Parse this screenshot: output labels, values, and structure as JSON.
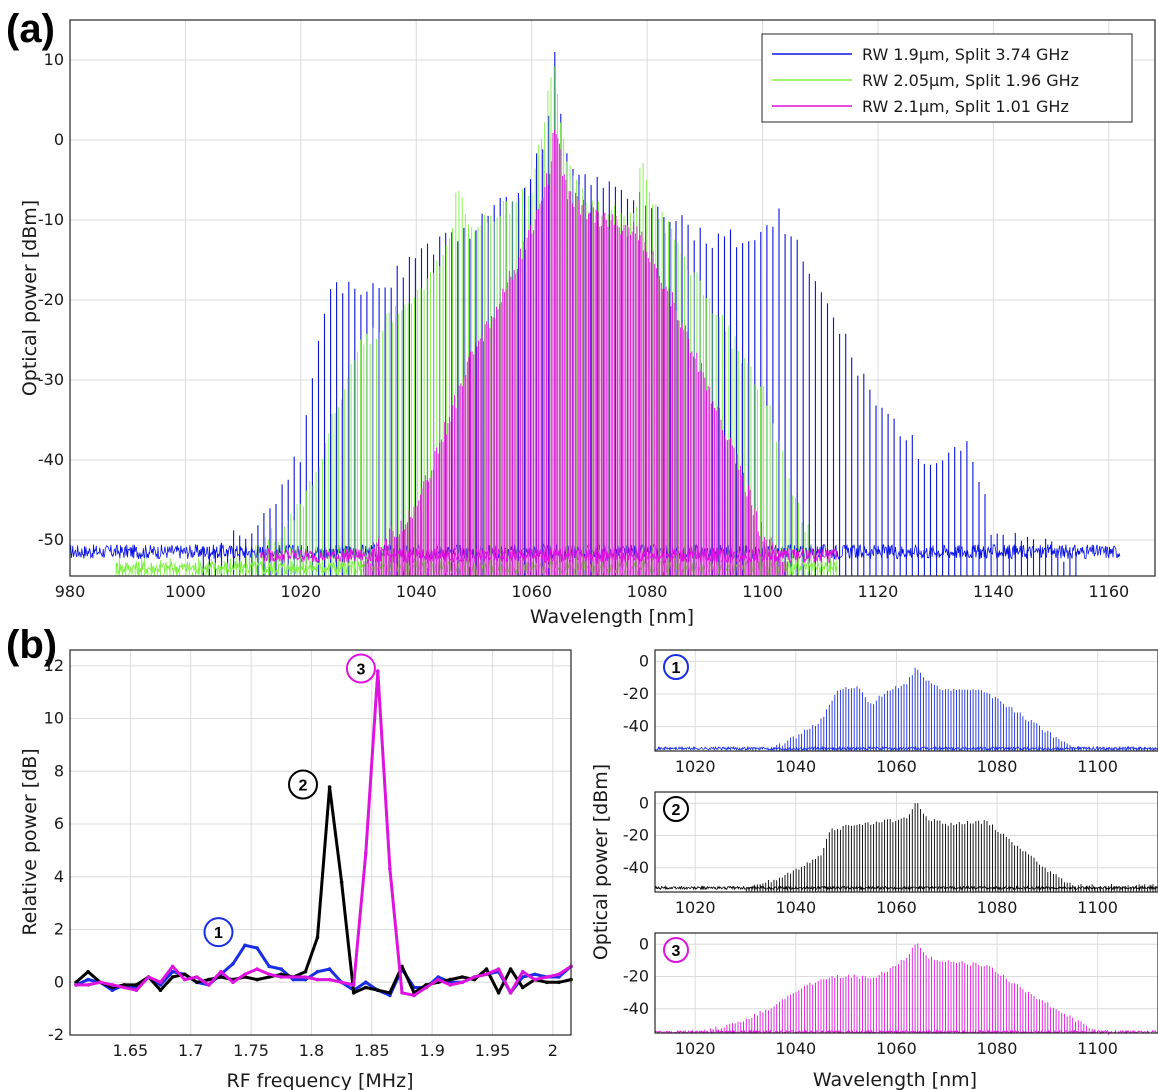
{
  "panel_labels": {
    "a": "(a)",
    "b": "(b)"
  },
  "chart_data": [
    {
      "id": "a",
      "type": "line",
      "xlabel": "Wavelength [nm]",
      "ylabel": "Optical power [dBm]",
      "xlim": [
        980,
        1168
      ],
      "ylim": [
        -54.5,
        15
      ],
      "xticks": [
        980,
        1000,
        1020,
        1040,
        1060,
        1080,
        1100,
        1120,
        1140,
        1160
      ],
      "yticks": [
        -50,
        -40,
        -30,
        -20,
        -10,
        0,
        10
      ],
      "grid": true,
      "legend": "top-right",
      "series": [
        {
          "name": "RW 1.9µm, Split 3.74 GHz",
          "color": "#0a12e0",
          "range": [
            980,
            1162
          ],
          "noise_floor": -52,
          "envelope": [
            [
              1000,
              -52
            ],
            [
              1010,
              -48
            ],
            [
              1015,
              -44
            ],
            [
              1020,
              -38
            ],
            [
              1022,
              -28
            ],
            [
              1025,
              -18
            ],
            [
              1030,
              -17
            ],
            [
              1035,
              -17
            ],
            [
              1040,
              -13
            ],
            [
              1050,
              -10
            ],
            [
              1058,
              -5
            ],
            [
              1062,
              0
            ],
            [
              1064,
              11
            ],
            [
              1066,
              -1
            ],
            [
              1070,
              -4
            ],
            [
              1080,
              -6
            ],
            [
              1090,
              -11
            ],
            [
              1100,
              -11
            ],
            [
              1103,
              -8
            ],
            [
              1110,
              -18
            ],
            [
              1115,
              -25
            ],
            [
              1120,
              -32
            ],
            [
              1130,
              -40
            ],
            [
              1136,
              -37
            ],
            [
              1140,
              -48
            ],
            [
              1150,
              -50
            ],
            [
              1160,
              -52
            ]
          ]
        },
        {
          "name": "RW 2.05µm, Split 1.96 GHz",
          "color": "#7ef042",
          "range": [
            988,
            1113
          ],
          "noise_floor": -54,
          "envelope": [
            [
              1010,
              -52
            ],
            [
              1020,
              -45
            ],
            [
              1025,
              -35
            ],
            [
              1030,
              -25
            ],
            [
              1040,
              -18
            ],
            [
              1046,
              -12
            ],
            [
              1047,
              -4
            ],
            [
              1050,
              -10
            ],
            [
              1060,
              -5
            ],
            [
              1064,
              11
            ],
            [
              1066,
              -2
            ],
            [
              1070,
              -7
            ],
            [
              1078,
              -9
            ],
            [
              1079,
              -1
            ],
            [
              1082,
              -8
            ],
            [
              1090,
              -18
            ],
            [
              1100,
              -30
            ],
            [
              1105,
              -42
            ],
            [
              1110,
              -52
            ]
          ]
        },
        {
          "name": "RW 2.1µm, Split 1.01 GHz",
          "color": "#e010e0",
          "range": [
            1013,
            1113
          ],
          "noise_floor": -52.5,
          "envelope": [
            [
              1030,
              -52
            ],
            [
              1040,
              -45
            ],
            [
              1045,
              -35
            ],
            [
              1050,
              -25
            ],
            [
              1055,
              -18
            ],
            [
              1060,
              -10
            ],
            [
              1063,
              -3
            ],
            [
              1064,
              4
            ],
            [
              1066,
              -5
            ],
            [
              1070,
              -8
            ],
            [
              1078,
              -10
            ],
            [
              1082,
              -15
            ],
            [
              1088,
              -25
            ],
            [
              1095,
              -38
            ],
            [
              1100,
              -48
            ],
            [
              1105,
              -52
            ]
          ]
        }
      ]
    },
    {
      "id": "b-left",
      "type": "line",
      "xlabel": "RF frequency [MHz]",
      "ylabel": "Relative power [dB]",
      "xlim": [
        1.6,
        2.015
      ],
      "ylim": [
        -2,
        12.6
      ],
      "xticks": [
        1.65,
        1.7,
        1.75,
        1.8,
        1.85,
        1.9,
        1.95,
        2
      ],
      "yticks": [
        -2,
        0,
        2,
        4,
        6,
        8,
        10,
        12
      ],
      "grid": true,
      "x": [
        1.605,
        1.615,
        1.625,
        1.635,
        1.645,
        1.655,
        1.665,
        1.675,
        1.685,
        1.695,
        1.705,
        1.715,
        1.725,
        1.735,
        1.745,
        1.755,
        1.765,
        1.775,
        1.785,
        1.795,
        1.805,
        1.815,
        1.825,
        1.835,
        1.845,
        1.855,
        1.865,
        1.875,
        1.885,
        1.895,
        1.905,
        1.915,
        1.925,
        1.935,
        1.945,
        1.955,
        1.965,
        1.975,
        1.985,
        1.995,
        2.005,
        2.015
      ],
      "series": [
        {
          "name": "1",
          "color": "#1a2ee6",
          "values": [
            -0.1,
            0.1,
            0.0,
            -0.3,
            -0.1,
            -0.2,
            0.2,
            -0.1,
            0.4,
            0.3,
            0.0,
            -0.1,
            0.3,
            0.7,
            1.4,
            1.3,
            0.6,
            0.5,
            0.1,
            0.1,
            0.4,
            0.5,
            0.0,
            -0.3,
            0.0,
            -0.3,
            -0.5,
            0.5,
            -0.2,
            -0.2,
            0.2,
            0.0,
            0.0,
            0.2,
            0.3,
            0.4,
            -0.4,
            0.2,
            0.3,
            0.2,
            0.2,
            0.6
          ]
        },
        {
          "name": "2",
          "color": "#000000",
          "values": [
            0.0,
            0.4,
            0.0,
            -0.2,
            -0.1,
            -0.1,
            0.2,
            -0.3,
            0.2,
            0.3,
            0.0,
            0.1,
            0.2,
            0.1,
            0.2,
            0.1,
            0.2,
            0.3,
            0.2,
            0.4,
            1.7,
            7.4,
            3.8,
            -0.4,
            -0.2,
            -0.3,
            -0.4,
            0.6,
            -0.4,
            -0.1,
            0.0,
            0.1,
            0.2,
            0.1,
            0.5,
            -0.4,
            0.5,
            -0.2,
            0.1,
            0.0,
            0.0,
            0.1
          ]
        },
        {
          "name": "3",
          "color": "#dd14dd",
          "values": [
            -0.1,
            -0.1,
            0.0,
            -0.1,
            -0.2,
            -0.3,
            0.2,
            0.0,
            0.6,
            0.1,
            0.2,
            -0.1,
            0.4,
            0.0,
            0.3,
            0.5,
            0.3,
            0.2,
            0.2,
            0.2,
            0.1,
            0.1,
            0.0,
            -0.1,
            4.9,
            11.8,
            4.3,
            -0.4,
            -0.5,
            -0.2,
            0.1,
            -0.1,
            0.0,
            0.2,
            0.3,
            0.5,
            -0.4,
            0.4,
            0.1,
            0.2,
            0.3,
            0.6
          ]
        }
      ],
      "annotations": [
        {
          "label": "1",
          "x": 1.723,
          "y": 1.9,
          "color": "#1a2ee6"
        },
        {
          "label": "2",
          "x": 1.793,
          "y": 7.5,
          "color": "#000000"
        },
        {
          "label": "3",
          "x": 1.841,
          "y": 11.9,
          "color": "#dd14dd"
        }
      ]
    },
    {
      "id": "b-right",
      "type": "line",
      "xlabel": "Wavelength [nm]",
      "ylabel": "Optical power [dBm]",
      "xlim": [
        1012,
        1112
      ],
      "ylim": [
        -55,
        7
      ],
      "xticks": [
        1020,
        1040,
        1060,
        1080,
        1100
      ],
      "yticks": [
        -40,
        -20,
        0
      ],
      "grid": true,
      "subplots": [
        {
          "label": "1",
          "color": "#1a2ee6",
          "noise_floor": -54,
          "envelope": [
            [
              1035,
              -53
            ],
            [
              1040,
              -45
            ],
            [
              1045,
              -35
            ],
            [
              1048,
              -17
            ],
            [
              1052,
              -14
            ],
            [
              1055,
              -25
            ],
            [
              1058,
              -17
            ],
            [
              1062,
              -12
            ],
            [
              1064,
              -2
            ],
            [
              1066,
              -10
            ],
            [
              1070,
              -17
            ],
            [
              1076,
              -15
            ],
            [
              1080,
              -22
            ],
            [
              1085,
              -32
            ],
            [
              1090,
              -42
            ],
            [
              1095,
              -52
            ]
          ]
        },
        {
          "label": "2",
          "color": "#000000",
          "noise_floor": -53,
          "envelope": [
            [
              1030,
              -52
            ],
            [
              1035,
              -47
            ],
            [
              1040,
              -40
            ],
            [
              1045,
              -30
            ],
            [
              1047,
              -15
            ],
            [
              1052,
              -12
            ],
            [
              1058,
              -10
            ],
            [
              1062,
              -8
            ],
            [
              1064,
              3
            ],
            [
              1066,
              -8
            ],
            [
              1070,
              -12
            ],
            [
              1078,
              -10
            ],
            [
              1080,
              -15
            ],
            [
              1085,
              -28
            ],
            [
              1090,
              -40
            ],
            [
              1095,
              -50
            ]
          ]
        },
        {
          "label": "3",
          "color": "#dd14dd",
          "noise_floor": -55,
          "envelope": [
            [
              1020,
              -54
            ],
            [
              1028,
              -48
            ],
            [
              1035,
              -38
            ],
            [
              1040,
              -28
            ],
            [
              1045,
              -20
            ],
            [
              1050,
              -18
            ],
            [
              1055,
              -20
            ],
            [
              1058,
              -15
            ],
            [
              1062,
              -7
            ],
            [
              1064,
              2
            ],
            [
              1066,
              -7
            ],
            [
              1072,
              -10
            ],
            [
              1078,
              -12
            ],
            [
              1082,
              -20
            ],
            [
              1088,
              -32
            ],
            [
              1095,
              -45
            ],
            [
              1100,
              -53
            ],
            [
              1105,
              -55
            ]
          ]
        }
      ]
    }
  ]
}
